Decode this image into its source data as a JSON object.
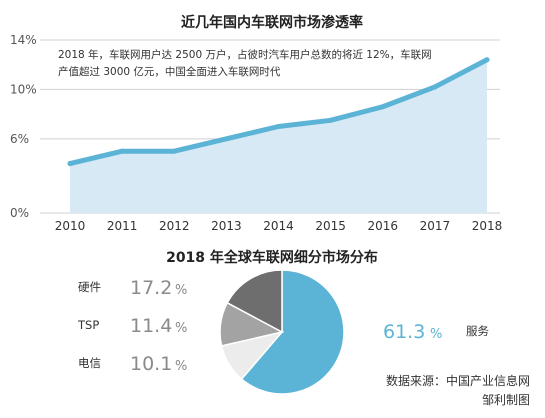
{
  "chart_data": [
    {
      "type": "area",
      "title": "近几年国内车联网市场渗透率",
      "x": [
        "2010",
        "2011",
        "2012",
        "2013",
        "2014",
        "2015",
        "2016",
        "2017",
        "2018"
      ],
      "values": [
        4.0,
        5.0,
        5.0,
        6.0,
        7.0,
        7.5,
        8.6,
        10.2,
        12.4
      ],
      "ylim": [
        0,
        14
      ],
      "yticks": [
        "0%",
        "6%",
        "10%",
        "14%"
      ],
      "ytick_values": [
        0,
        6,
        10,
        14
      ],
      "annotation": [
        "2018 年，车联网用户达 2500 万户，占彼时汽车用户总数的将近 12%，车联网",
        "产值超过 3000 亿元，中国全面进入车联网时代"
      ],
      "grid": true,
      "colors": {
        "line": "#5bb3d6",
        "fill": "#d7e9f4",
        "grid": "#d0d0d0"
      }
    },
    {
      "type": "pie",
      "title": "2018  年全球车联网细分市场分布",
      "slices": [
        {
          "name": "服务",
          "value": 61.3,
          "display": "61.3",
          "unit": "%",
          "color": "#5bb3d6",
          "accent": true
        },
        {
          "name": "电信",
          "value": 10.1,
          "display": "10.1",
          "unit": "%",
          "color": "#ececec",
          "accent": false
        },
        {
          "name": "TSP",
          "value": 11.4,
          "display": "11.4",
          "unit": "%",
          "color": "#a3a3a3",
          "accent": false
        },
        {
          "name": "硬件",
          "value": 17.2,
          "display": "17.2",
          "unit": "%",
          "color": "#6e6e6e",
          "accent": false
        }
      ]
    }
  ],
  "source": {
    "line1": "数据来源：中国产业信息网",
    "line2": "邹利制图"
  }
}
